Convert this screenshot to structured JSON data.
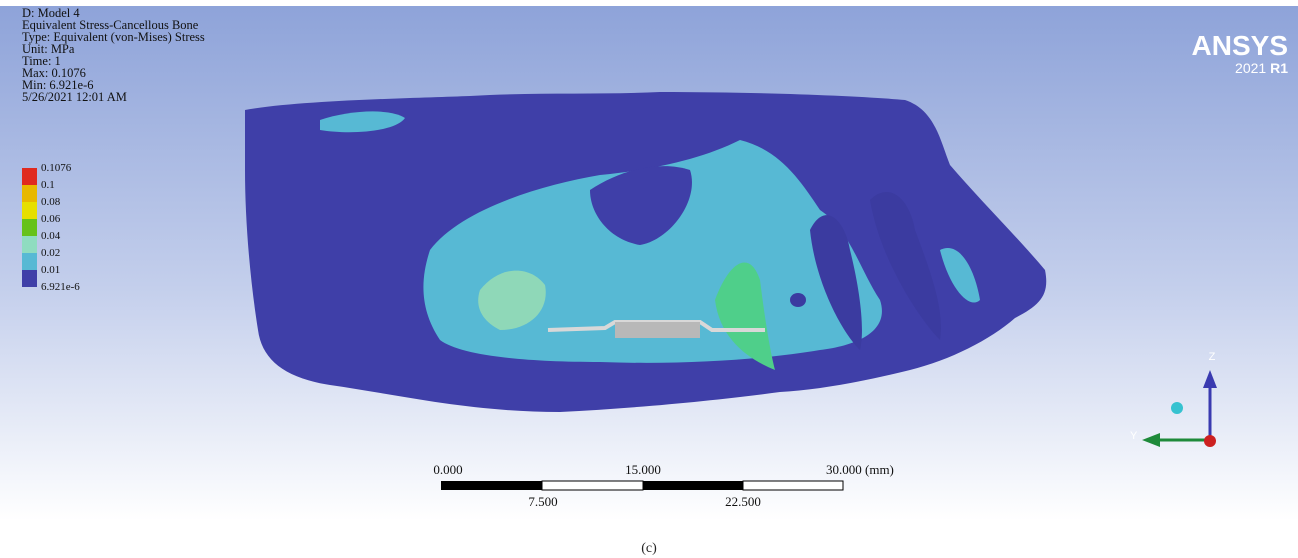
{
  "info": {
    "lines": [
      "D: Model 4",
      "Equivalent Stress-Cancellous Bone",
      "Type: Equivalent (von-Mises) Stress",
      "Unit: MPa",
      "Time: 1",
      "Max: 0.1076",
      "Min: 6.921e-6",
      "5/26/2021 12:01 AM"
    ]
  },
  "legend": {
    "labels": [
      "0.1076",
      "0.1",
      "0.08",
      "0.06",
      "0.04",
      "0.02",
      "0.01",
      "6.921e-6"
    ]
  },
  "logo": {
    "brand": "ANSYS",
    "version": "2021",
    "release": "R1"
  },
  "scale_bar": {
    "top_labels": [
      "0.000",
      "15.000",
      "30.000 (mm)"
    ],
    "bottom_labels": [
      "7.500",
      "22.500"
    ]
  },
  "triad": {
    "z": "Z",
    "y": "Y"
  },
  "caption": "(c)"
}
